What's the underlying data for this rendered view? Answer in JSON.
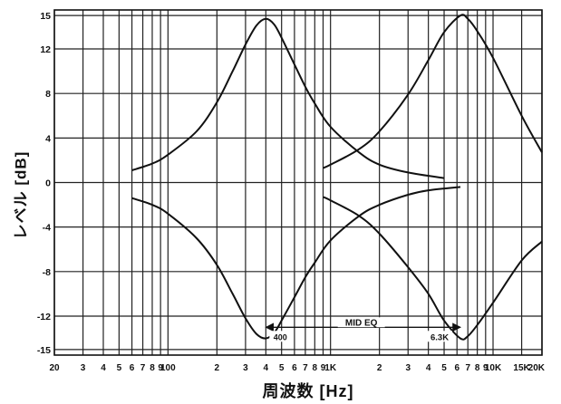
{
  "chart_data": {
    "type": "line",
    "title": "",
    "xlabel": "周波数 [Hz]",
    "ylabel": "レベル [dB]",
    "x_scale": "log",
    "xlim": [
      20,
      20000
    ],
    "ylim": [
      -15.5,
      15.5
    ],
    "grid": true,
    "y_ticks": [
      15,
      12,
      8,
      4,
      0,
      -4,
      -8,
      -12,
      -15
    ],
    "y_tick_labels": [
      "15",
      "12",
      "8",
      "4",
      "0",
      "-4",
      "-8",
      "-12",
      "-15"
    ],
    "x_ticks": [
      20,
      30,
      40,
      50,
      60,
      70,
      80,
      90,
      100,
      200,
      300,
      400,
      500,
      600,
      700,
      800,
      900,
      1000,
      2000,
      3000,
      4000,
      5000,
      6000,
      7000,
      8000,
      9000,
      10000,
      15000,
      20000
    ],
    "x_tick_labels": [
      "20",
      "3",
      "4",
      "5",
      "6",
      "7",
      "8",
      "9",
      "100",
      "2",
      "3",
      "4",
      "5",
      "6",
      "7",
      "8",
      "9",
      "1K",
      "2",
      "3",
      "4",
      "5",
      "6",
      "7",
      "8",
      "9",
      "10K",
      "15K",
      "20K"
    ],
    "series": [
      {
        "values": [
          [
            60,
            1.1
          ],
          [
            80,
            1.7
          ],
          [
            100,
            2.5
          ],
          [
            150,
            4.6
          ],
          [
            200,
            7.2
          ],
          [
            250,
            10.0
          ],
          [
            300,
            12.4
          ],
          [
            350,
            14.1
          ],
          [
            400,
            14.7
          ],
          [
            450,
            14.2
          ],
          [
            500,
            13.0
          ],
          [
            600,
            10.6
          ],
          [
            700,
            8.6
          ],
          [
            800,
            7.1
          ],
          [
            1000,
            5.0
          ],
          [
            1500,
            2.7
          ],
          [
            2000,
            1.6
          ],
          [
            3000,
            0.9
          ],
          [
            5000,
            0.4
          ]
        ]
      },
      {
        "values": [
          [
            60,
            -1.4
          ],
          [
            80,
            -2.0
          ],
          [
            100,
            -2.8
          ],
          [
            150,
            -5.0
          ],
          [
            200,
            -7.4
          ],
          [
            250,
            -10.0
          ],
          [
            300,
            -12.2
          ],
          [
            350,
            -13.6
          ],
          [
            400,
            -14.0
          ],
          [
            450,
            -13.5
          ],
          [
            500,
            -12.4
          ],
          [
            600,
            -10.3
          ],
          [
            700,
            -8.5
          ],
          [
            800,
            -7.2
          ],
          [
            1000,
            -5.2
          ],
          [
            1500,
            -3.0
          ],
          [
            2000,
            -2.0
          ],
          [
            3000,
            -1.1
          ],
          [
            4000,
            -0.7
          ],
          [
            6300,
            -0.4
          ]
        ]
      },
      {
        "values": [
          [
            900,
            1.3
          ],
          [
            1000,
            1.6
          ],
          [
            1500,
            3.0
          ],
          [
            2000,
            4.6
          ],
          [
            3000,
            7.9
          ],
          [
            4000,
            11.0
          ],
          [
            5000,
            13.5
          ],
          [
            6300,
            15.0
          ],
          [
            7000,
            14.7
          ],
          [
            8000,
            13.6
          ],
          [
            10000,
            11.2
          ],
          [
            15000,
            6.0
          ],
          [
            20000,
            2.7
          ]
        ]
      },
      {
        "values": [
          [
            900,
            -1.3
          ],
          [
            1000,
            -1.6
          ],
          [
            1500,
            -3.0
          ],
          [
            2000,
            -4.6
          ],
          [
            3000,
            -7.6
          ],
          [
            4000,
            -10.0
          ],
          [
            5000,
            -12.4
          ],
          [
            6300,
            -14.0
          ],
          [
            7000,
            -13.8
          ],
          [
            8000,
            -12.8
          ],
          [
            10000,
            -10.8
          ],
          [
            15000,
            -7.0
          ],
          [
            20000,
            -5.3
          ]
        ]
      }
    ],
    "annotations": [
      {
        "text": "MID EQ",
        "range": [
          400,
          6300
        ]
      },
      {
        "text": "400",
        "x": 400
      },
      {
        "text": "6.3K",
        "x": 6300
      }
    ]
  }
}
